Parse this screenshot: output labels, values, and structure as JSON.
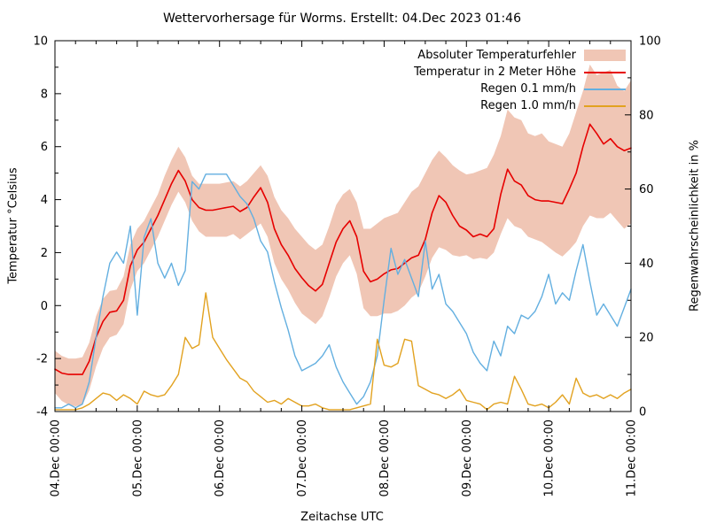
{
  "title": "Wettervorhersage für Worms. Erstellt: 04.Dec 2023 01:46",
  "chart_data": {
    "type": "line",
    "title": "Wettervorhersage für Worms. Erstellt: 04.Dec 2023 01:46",
    "xlabel": "Zeitachse UTC",
    "ylabel_left": "Temperatur °Celsius",
    "ylabel_right": "Regenwahrscheinlichkeit in %",
    "x_ticks": [
      "04.Dec 00:00",
      "05.Dec 00:00",
      "06.Dec 00:00",
      "07.Dec 00:00",
      "08.Dec 00:00",
      "09.Dec 00:00",
      "10.Dec 00:00",
      "11.Dec 00:00"
    ],
    "x_range_hours": [
      0,
      168
    ],
    "x_minor_tick_hours": 6,
    "y_left_range": [
      -4,
      10
    ],
    "y_left_ticks": [
      -4,
      -2,
      0,
      2,
      4,
      6,
      8,
      10
    ],
    "y_right_range": [
      0,
      100
    ],
    "y_right_ticks": [
      0,
      20,
      40,
      60,
      80,
      100
    ],
    "grid": false,
    "legend_position": "top-right",
    "hours": [
      0,
      2,
      4,
      6,
      8,
      10,
      12,
      14,
      16,
      18,
      20,
      22,
      24,
      26,
      28,
      30,
      32,
      34,
      36,
      38,
      40,
      42,
      44,
      46,
      48,
      50,
      52,
      54,
      56,
      58,
      60,
      62,
      64,
      66,
      68,
      70,
      72,
      74,
      76,
      78,
      80,
      82,
      84,
      86,
      88,
      90,
      92,
      94,
      96,
      98,
      100,
      102,
      104,
      106,
      108,
      110,
      112,
      114,
      116,
      118,
      120,
      122,
      124,
      126,
      128,
      130,
      132,
      134,
      136,
      138,
      140,
      142,
      144,
      146,
      148,
      150,
      152,
      154,
      156,
      158,
      160,
      162,
      164,
      166,
      168
    ],
    "series": [
      {
        "name": "Absoluter Temperaturfehler",
        "type": "band",
        "axis": "left",
        "color": "#f0c6b5",
        "low": [
          -3.3,
          -3.6,
          -3.75,
          -3.8,
          -3.75,
          -3.2,
          -2.3,
          -1.6,
          -1.2,
          -1.1,
          -0.7,
          0.6,
          1.3,
          1.6,
          2.1,
          2.6,
          3.2,
          3.8,
          4.3,
          3.9,
          3.2,
          2.8,
          2.6,
          2.6,
          2.6,
          2.6,
          2.7,
          2.5,
          2.7,
          2.9,
          3.1,
          2.6,
          1.6,
          1.0,
          0.6,
          0.1,
          -0.3,
          -0.5,
          -0.7,
          -0.4,
          0.3,
          1.1,
          1.6,
          1.9,
          1.2,
          -0.1,
          -0.4,
          -0.4,
          -0.3,
          -0.3,
          -0.2,
          0.0,
          0.3,
          0.5,
          1.1,
          1.8,
          2.2,
          2.1,
          1.9,
          1.85,
          1.9,
          1.75,
          1.8,
          1.75,
          2.0,
          2.7,
          3.3,
          3.0,
          2.9,
          2.6,
          2.5,
          2.4,
          2.2,
          2.0,
          1.85,
          2.1,
          2.4,
          3.0,
          3.4,
          3.3,
          3.3,
          3.5,
          3.2,
          2.9,
          3.1
        ],
        "high": [
          -1.7,
          -1.9,
          -2.0,
          -2.0,
          -1.95,
          -1.4,
          -0.4,
          0.25,
          0.55,
          0.6,
          1.1,
          2.3,
          2.9,
          3.2,
          3.7,
          4.2,
          4.9,
          5.5,
          6.0,
          5.6,
          4.9,
          4.6,
          4.6,
          4.6,
          4.6,
          4.65,
          4.7,
          4.5,
          4.7,
          5.0,
          5.3,
          4.9,
          4.1,
          3.6,
          3.3,
          2.9,
          2.6,
          2.3,
          2.1,
          2.3,
          3.0,
          3.8,
          4.2,
          4.4,
          3.9,
          2.9,
          2.9,
          3.1,
          3.3,
          3.4,
          3.5,
          3.9,
          4.3,
          4.5,
          5.0,
          5.5,
          5.85,
          5.6,
          5.3,
          5.1,
          4.95,
          5.0,
          5.1,
          5.2,
          5.7,
          6.4,
          7.4,
          7.1,
          7.0,
          6.5,
          6.4,
          6.5,
          6.2,
          6.1,
          6.0,
          6.5,
          7.3,
          8.1,
          9.1,
          8.7,
          8.8,
          8.9,
          8.3,
          8.1,
          8.5
        ]
      },
      {
        "name": "Temperatur in 2 Meter Höhe",
        "type": "line",
        "axis": "left",
        "color": "#e60000",
        "width": 1.6,
        "values": [
          -2.4,
          -2.55,
          -2.6,
          -2.6,
          -2.6,
          -2.1,
          -1.2,
          -0.6,
          -0.25,
          -0.2,
          0.2,
          1.5,
          2.1,
          2.4,
          2.9,
          3.4,
          4.0,
          4.6,
          5.1,
          4.7,
          4.0,
          3.7,
          3.6,
          3.6,
          3.65,
          3.7,
          3.75,
          3.55,
          3.7,
          4.1,
          4.45,
          3.9,
          2.9,
          2.3,
          1.9,
          1.4,
          1.05,
          0.75,
          0.55,
          0.8,
          1.6,
          2.4,
          2.9,
          3.2,
          2.6,
          1.3,
          0.9,
          1.0,
          1.2,
          1.35,
          1.4,
          1.6,
          1.8,
          1.9,
          2.5,
          3.5,
          4.15,
          3.9,
          3.4,
          3.0,
          2.85,
          2.6,
          2.7,
          2.6,
          2.9,
          4.2,
          5.15,
          4.7,
          4.55,
          4.15,
          4.0,
          3.95,
          3.95,
          3.9,
          3.85,
          4.4,
          5.0,
          6.0,
          6.85,
          6.5,
          6.1,
          6.3,
          6.0,
          5.85,
          5.95
        ]
      },
      {
        "name": "Regen 0.1 mm/h",
        "type": "line",
        "axis": "right",
        "color": "#63afe0",
        "width": 1.4,
        "values": [
          1,
          1,
          2,
          1,
          2,
          8,
          20,
          31,
          40,
          43,
          40,
          50,
          26,
          47,
          52,
          40,
          36,
          40,
          34,
          38,
          62,
          60,
          64,
          64,
          64,
          64,
          61,
          58,
          56,
          52,
          46,
          43,
          35,
          28,
          22,
          15,
          11,
          12,
          13,
          15,
          18,
          12,
          8,
          5,
          2,
          4,
          8,
          15,
          30,
          44,
          37,
          41,
          36,
          31,
          46,
          33,
          37,
          29,
          27,
          24,
          21,
          16,
          13,
          11,
          19,
          15,
          23,
          21,
          26,
          25,
          27,
          31,
          37,
          29,
          32,
          30,
          38,
          45,
          35,
          26,
          29,
          26,
          23,
          28,
          33
        ]
      },
      {
        "name": "Regen 1.0 mm/h",
        "type": "line",
        "axis": "right",
        "color": "#e2a220",
        "width": 1.4,
        "values": [
          0.5,
          0.5,
          0.5,
          0.5,
          1,
          2,
          3.5,
          5,
          4.5,
          3,
          4.5,
          3.5,
          2,
          5.5,
          4.5,
          4,
          4.5,
          7,
          10,
          20,
          17,
          18,
          32,
          20,
          17,
          14,
          11.5,
          9,
          8,
          5.5,
          4,
          2.5,
          3,
          2,
          3.5,
          2.5,
          1.5,
          1.5,
          2,
          1,
          0.5,
          0.5,
          0.5,
          0.5,
          1,
          1.5,
          2,
          19.5,
          12.5,
          12,
          13,
          19.5,
          19,
          7,
          6,
          5,
          4.5,
          3.5,
          4.5,
          6,
          3,
          2.5,
          2,
          0.5,
          2,
          2.5,
          2,
          9.5,
          6,
          2,
          1.5,
          2,
          1,
          2.5,
          4.5,
          2,
          9,
          5,
          4,
          4.5,
          3.5,
          4.5,
          3.5,
          5,
          6
        ]
      }
    ]
  }
}
